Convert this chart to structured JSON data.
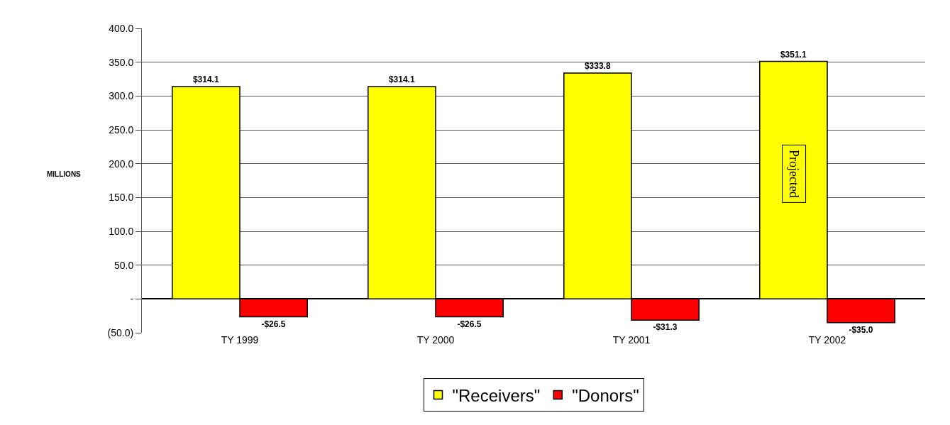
{
  "chart_data": {
    "type": "bar",
    "ylabel": "MILLIONS",
    "categories": [
      "TY 1999",
      "TY 2000",
      "TY 2001",
      "TY 2002"
    ],
    "series": [
      {
        "name": "\"Receivers\"",
        "color": "#ffff00",
        "values": [
          314.1,
          314.1,
          333.8,
          351.1
        ],
        "value_labels": [
          "$314.1",
          "$314.1",
          "$333.8",
          "$351.1"
        ]
      },
      {
        "name": "\"Donors\"",
        "color": "#ff0000",
        "values": [
          -26.5,
          -26.5,
          -31.3,
          -35.0
        ],
        "value_labels": [
          "-$26.5",
          "-$26.5",
          "-$31.3",
          "-$35.0"
        ]
      }
    ],
    "ylim": [
      -50,
      400
    ],
    "yticks": [
      {
        "value": -50,
        "label": "(50.0)"
      },
      {
        "value": 0,
        "label": "-"
      },
      {
        "value": 50,
        "label": "50.0"
      },
      {
        "value": 100,
        "label": "100.0"
      },
      {
        "value": 150,
        "label": "150.0"
      },
      {
        "value": 200,
        "label": "200.0"
      },
      {
        "value": 250,
        "label": "250.0"
      },
      {
        "value": 300,
        "label": "300.0"
      },
      {
        "value": 350,
        "label": "350.0"
      },
      {
        "value": 400,
        "label": "400.0"
      }
    ],
    "annotations": [
      {
        "text": "Projected",
        "x": "TY 2002",
        "y": 185
      }
    ],
    "grid": "y",
    "legend": "bottom"
  }
}
